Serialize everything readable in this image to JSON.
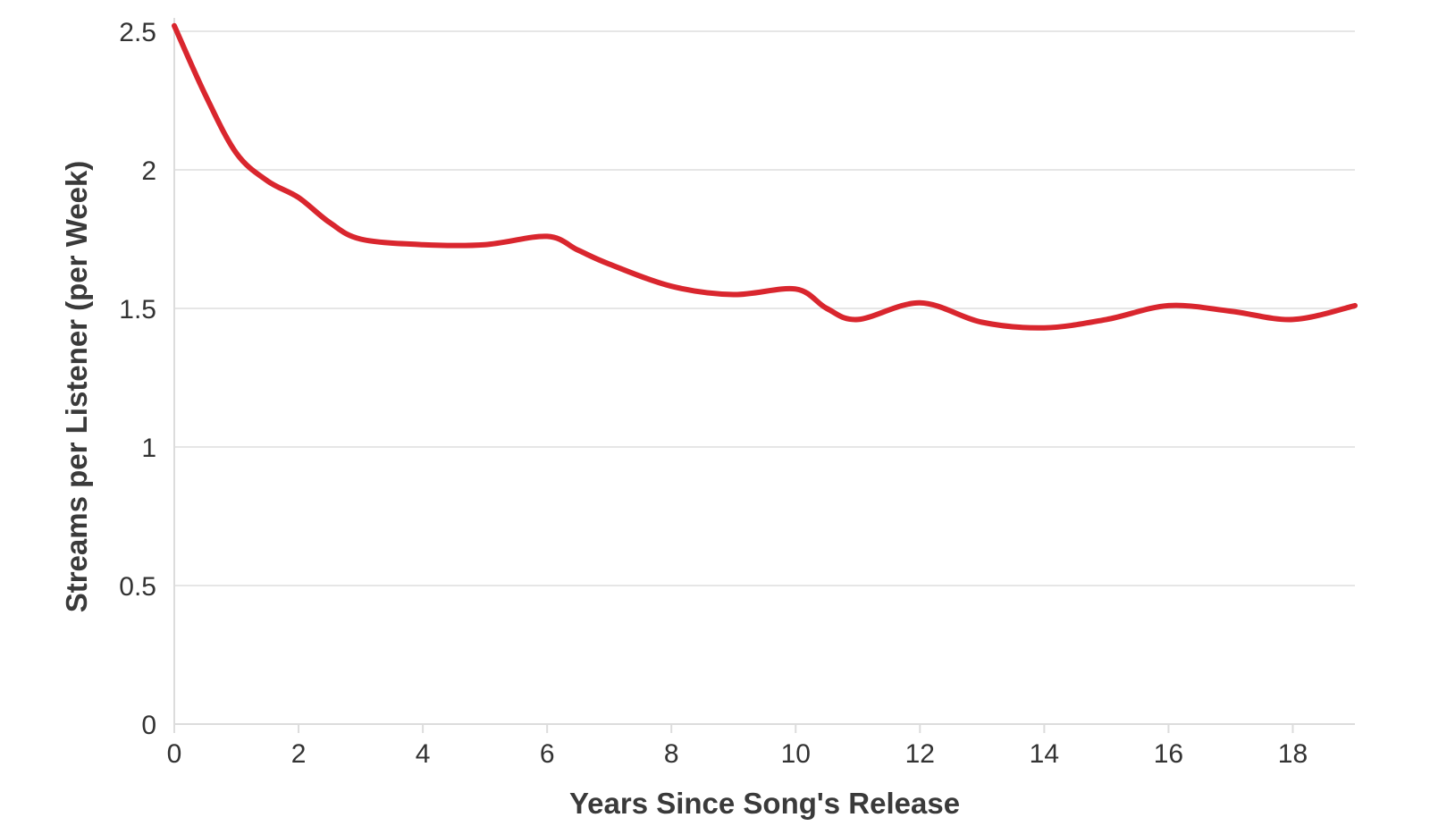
{
  "chart_data": {
    "type": "line",
    "title": "",
    "xlabel": "Years Since Song's Release",
    "ylabel": "Streams per Listener (per Week)",
    "xlim": [
      0,
      19
    ],
    "ylim": [
      0,
      2.5
    ],
    "x_ticks": [
      0,
      2,
      4,
      6,
      8,
      10,
      12,
      14,
      16,
      18
    ],
    "x_tick_labels": [
      "0",
      "2",
      "4",
      "6",
      "8",
      "10",
      "12",
      "14",
      "16",
      "18"
    ],
    "y_ticks": [
      0,
      0.5,
      1,
      1.5,
      2,
      2.5
    ],
    "y_tick_labels": [
      "0",
      "0.5",
      "1",
      "1.5",
      "2",
      "2.5"
    ],
    "grid": true,
    "line_color": "#d9262e",
    "series": [
      {
        "x": [
          0,
          0.5,
          1,
          1.5,
          2,
          2.5,
          3,
          4,
          5,
          6,
          6.5,
          7,
          8,
          9,
          10,
          10.5,
          11,
          12,
          13,
          14,
          15,
          16,
          17,
          18,
          19
        ],
        "values": [
          2.52,
          2.27,
          2.06,
          1.96,
          1.9,
          1.81,
          1.75,
          1.73,
          1.73,
          1.76,
          1.71,
          1.66,
          1.58,
          1.55,
          1.57,
          1.5,
          1.46,
          1.52,
          1.45,
          1.43,
          1.46,
          1.51,
          1.49,
          1.46,
          1.51
        ]
      }
    ]
  }
}
